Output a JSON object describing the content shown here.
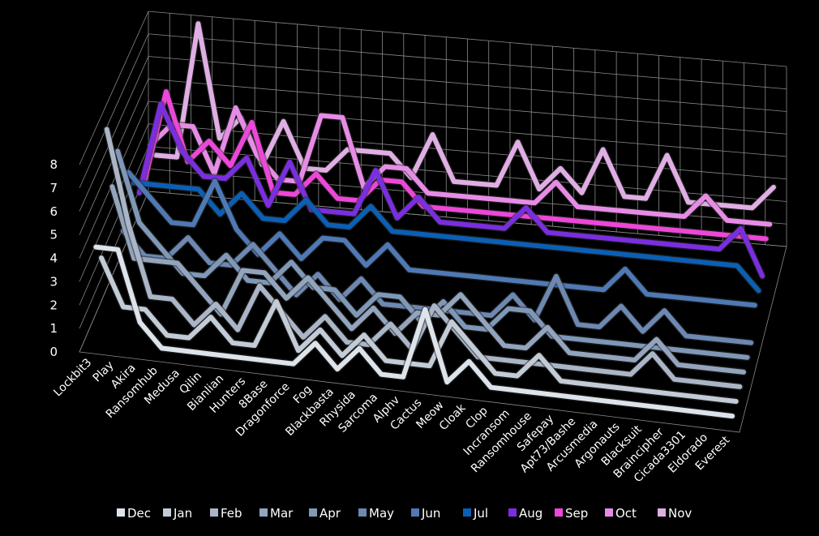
{
  "chart_data": {
    "type": "line",
    "subtype": "3d-line",
    "title": "",
    "xlabel": "",
    "ylabel": "",
    "ylim": [
      0,
      8
    ],
    "yticks": [
      0,
      1,
      2,
      3,
      4,
      5,
      6,
      7,
      8
    ],
    "grid": true,
    "legend_position": "bottom",
    "categories": [
      "Lockbit3",
      "Play",
      "Akira",
      "Ransomhub",
      "Medusa",
      "Qilin",
      "Bianlian",
      "Hunters",
      "8Base",
      "Dragonforce",
      "Fog",
      "Blackbasta",
      "Rhysida",
      "Sarcoma",
      "Alphv",
      "Cactus",
      "Meow",
      "Cloak",
      "Clop",
      "Incransom",
      "Ransomhouse",
      "Safepay",
      "Apt73/Bashe",
      "Arcusmedia",
      "Argonauts",
      "Blacksuit",
      "Braincipher",
      "Cicada3301",
      "Eldorado",
      "Everest"
    ],
    "series": [
      {
        "name": "Dec",
        "color": "#dde3ea",
        "values": [
          4,
          4,
          1,
          0,
          0,
          0,
          0,
          0,
          0,
          0,
          1,
          0,
          1,
          0,
          0,
          3,
          0,
          1,
          0,
          0,
          0,
          0,
          0,
          0,
          0,
          0,
          0,
          0,
          0,
          0
        ]
      },
      {
        "name": "Jan",
        "color": "#c3cbd6",
        "values": [
          3,
          1,
          1,
          0,
          0,
          1,
          0,
          0,
          2,
          0,
          1,
          0,
          1,
          0,
          0,
          0,
          2,
          1,
          0,
          0,
          1,
          0,
          0,
          0,
          0,
          0,
          0,
          0,
          0,
          0
        ]
      },
      {
        "name": "Feb",
        "color": "#aab6c7",
        "values": [
          8,
          4,
          1,
          1,
          0,
          1,
          0,
          2,
          1,
          0,
          1,
          0,
          0,
          1,
          0,
          2,
          1,
          0,
          0,
          0,
          0,
          0,
          0,
          0,
          0,
          1,
          0,
          0,
          0,
          0
        ]
      },
      {
        "name": "Mar",
        "color": "#93a4bd",
        "values": [
          5,
          2,
          2,
          2,
          1,
          0,
          2,
          2,
          1,
          2,
          1,
          0,
          1,
          0,
          1,
          1,
          2,
          1,
          0,
          0,
          1,
          0,
          0,
          0,
          0,
          1,
          0,
          0,
          0,
          0
        ]
      },
      {
        "name": "Apr",
        "color": "#7f98b8",
        "values": [
          6,
          3,
          2,
          1,
          1,
          2,
          1,
          1,
          2,
          1,
          1,
          0,
          1,
          1,
          0,
          1,
          0,
          0,
          1,
          1,
          0,
          0,
          0,
          0,
          0,
          0,
          0,
          0,
          0,
          0
        ]
      },
      {
        "name": "May",
        "color": "#6d88b1",
        "values": [
          2,
          1,
          1,
          2,
          1,
          1,
          2,
          1,
          0,
          1,
          0,
          1,
          0,
          0,
          0,
          0,
          0,
          0,
          1,
          0,
          2,
          0,
          0,
          1,
          0,
          1,
          0,
          0,
          0,
          0
        ]
      },
      {
        "name": "Jun",
        "color": "#4f79b5",
        "values": [
          4,
          3,
          2,
          2,
          4,
          2,
          1,
          2,
          1,
          2,
          2,
          1,
          2,
          1,
          1,
          1,
          1,
          1,
          1,
          1,
          1,
          1,
          1,
          2,
          1,
          1,
          1,
          1,
          1,
          1
        ]
      },
      {
        "name": "Jul",
        "color": "#0b5fb4",
        "values": [
          3,
          3,
          3,
          3,
          2,
          3,
          2,
          2,
          3,
          2,
          2,
          3,
          2,
          2,
          2,
          2,
          2,
          2,
          2,
          2,
          2,
          2,
          2,
          2,
          2,
          2,
          2,
          2,
          2,
          1
        ]
      },
      {
        "name": "Aug",
        "color": "#7a2ee0",
        "values": [
          2,
          6,
          4,
          3,
          3,
          4,
          2,
          4,
          2,
          2,
          2,
          4,
          2,
          3,
          2,
          2,
          2,
          2,
          3,
          2,
          2,
          2,
          2,
          2,
          2,
          2,
          2,
          2,
          3,
          1
        ]
      },
      {
        "name": "Sep",
        "color": "#ec47d8",
        "values": [
          2,
          6,
          3,
          4,
          3,
          5,
          2,
          2,
          3,
          2,
          2,
          3,
          3,
          2,
          2,
          2,
          2,
          2,
          2,
          2,
          2,
          2,
          2,
          2,
          2,
          2,
          2,
          2,
          2,
          2
        ]
      },
      {
        "name": "Oct",
        "color": "#e78ce6",
        "values": [
          3,
          4,
          4,
          2,
          5,
          3,
          2,
          2,
          5,
          5,
          2,
          3,
          3,
          2,
          2,
          2,
          2,
          2,
          2,
          3,
          2,
          2,
          2,
          2,
          2,
          2,
          3,
          2,
          2,
          2
        ]
      },
      {
        "name": "Nov",
        "color": "#dfaee3",
        "values": [
          2,
          2,
          8,
          3,
          4,
          2,
          4,
          2,
          2,
          3,
          3,
          3,
          2,
          4,
          2,
          2,
          2,
          4,
          2,
          3,
          2,
          4,
          2,
          2,
          4,
          2,
          2,
          2,
          2,
          3
        ]
      }
    ]
  }
}
